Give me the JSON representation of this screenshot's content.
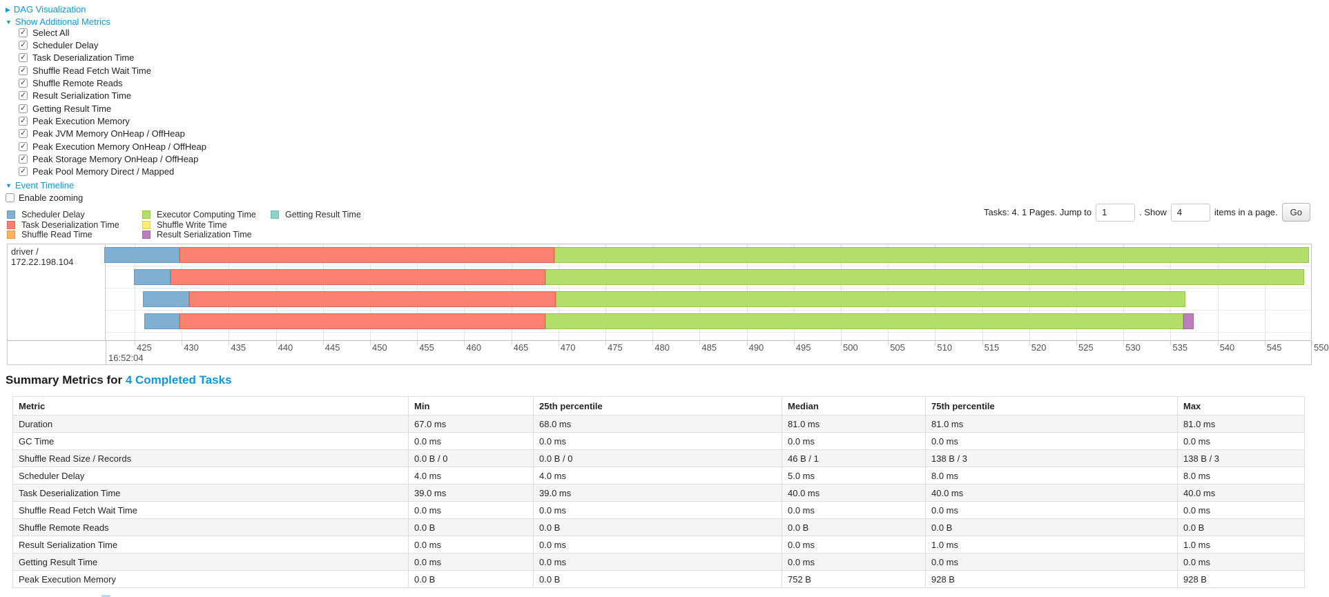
{
  "icons": {
    "collapsed_arrow": "▶",
    "expanded_arrow": "▼"
  },
  "colors": {
    "link": "#0d97d6",
    "scheduler_delay": {
      "fill": "#80B1D3",
      "border": "#659ABF"
    },
    "task_deserialization": {
      "fill": "#FB8072",
      "border": "#DF675A"
    },
    "shuffle_read": {
      "fill": "#FDB462",
      "border": "#E09A45"
    },
    "executor_computing": {
      "fill": "#B3DE69",
      "border": "#97C54A"
    },
    "shuffle_write": {
      "fill": "#FFED6F",
      "border": "#E3D051"
    },
    "result_serialization": {
      "fill": "#BC80BD",
      "border": "#A365A4"
    },
    "getting_result": {
      "fill": "#8DD3C7",
      "border": "#6FBCAE"
    }
  },
  "controls": {
    "dag_label": "DAG Visualization",
    "metrics_label": "Show Additional Metrics",
    "timeline_label": "Event Timeline",
    "enable_zooming_label": "Enable zooming",
    "enable_zooming_checked": false,
    "metric_checkboxes": [
      {
        "label": "Select All",
        "checked": true
      },
      {
        "label": "Scheduler Delay",
        "checked": true
      },
      {
        "label": "Task Deserialization Time",
        "checked": true
      },
      {
        "label": "Shuffle Read Fetch Wait Time",
        "checked": true
      },
      {
        "label": "Shuffle Remote Reads",
        "checked": true
      },
      {
        "label": "Result Serialization Time",
        "checked": true
      },
      {
        "label": "Getting Result Time",
        "checked": true
      },
      {
        "label": "Peak Execution Memory",
        "checked": true
      },
      {
        "label": "Peak JVM Memory OnHeap / OffHeap",
        "checked": true
      },
      {
        "label": "Peak Execution Memory OnHeap / OffHeap",
        "checked": true
      },
      {
        "label": "Peak Storage Memory OnHeap / OffHeap",
        "checked": true
      },
      {
        "label": "Peak Pool Memory Direct / Mapped",
        "checked": true
      }
    ]
  },
  "legend": {
    "items": [
      {
        "label": "Scheduler Delay",
        "kind": "scheduler_delay"
      },
      {
        "label": "Task Deserialization Time",
        "kind": "task_deserialization"
      },
      {
        "label": "Shuffle Read Time",
        "kind": "shuffle_read"
      },
      {
        "label": "Executor Computing Time",
        "kind": "executor_computing"
      },
      {
        "label": "Shuffle Write Time",
        "kind": "shuffle_write"
      },
      {
        "label": "Result Serialization Time",
        "kind": "result_serialization"
      },
      {
        "label": "Getting Result Time",
        "kind": "getting_result"
      }
    ]
  },
  "pagination": {
    "prefix": "Tasks: 4. 1 Pages. Jump to",
    "jump_value": "1",
    "mid": ". Show",
    "show_value": "4",
    "suffix": "items in a page.",
    "go_label": "Go"
  },
  "chart_data": {
    "type": "timeline-gantt",
    "group_label": "driver / 172.22.198.104",
    "x_axis": {
      "major_label": "16:52:04",
      "tick_step": 5,
      "ticks": [
        425,
        430,
        435,
        440,
        445,
        450,
        455,
        460,
        465,
        470,
        475,
        480,
        485,
        490,
        495,
        500,
        505,
        510,
        515,
        520,
        525,
        530,
        535,
        540,
        545,
        550
      ]
    },
    "tasks": [
      {
        "segments": [
          {
            "kind": "scheduler_delay",
            "start": 421.8,
            "end": 429.8
          },
          {
            "kind": "task_deserialization",
            "start": 429.8,
            "end": 469.6
          },
          {
            "kind": "executor_computing",
            "start": 469.6,
            "end": 549.7
          }
        ]
      },
      {
        "segments": [
          {
            "kind": "scheduler_delay",
            "start": 424.9,
            "end": 428.8
          },
          {
            "kind": "task_deserialization",
            "start": 428.8,
            "end": 468.6
          },
          {
            "kind": "executor_computing",
            "start": 468.6,
            "end": 549.2
          }
        ]
      },
      {
        "segments": [
          {
            "kind": "scheduler_delay",
            "start": 425.9,
            "end": 430.8
          },
          {
            "kind": "task_deserialization",
            "start": 430.8,
            "end": 469.7
          },
          {
            "kind": "executor_computing",
            "start": 469.7,
            "end": 536.6
          }
        ]
      },
      {
        "segments": [
          {
            "kind": "scheduler_delay",
            "start": 426.0,
            "end": 429.8
          },
          {
            "kind": "task_deserialization",
            "start": 429.8,
            "end": 468.6
          },
          {
            "kind": "executor_computing",
            "start": 468.6,
            "end": 536.4
          },
          {
            "kind": "result_serialization",
            "start": 536.4,
            "end": 537.5
          }
        ]
      }
    ]
  },
  "summary": {
    "title_prefix": "Summary Metrics for ",
    "title_link": "4 Completed Tasks",
    "table": {
      "headers": [
        "Metric",
        "Min",
        "25th percentile",
        "Median",
        "75th percentile",
        "Max"
      ],
      "rows": [
        [
          "Duration",
          "67.0 ms",
          "68.0 ms",
          "81.0 ms",
          "81.0 ms",
          "81.0 ms"
        ],
        [
          "GC Time",
          "0.0 ms",
          "0.0 ms",
          "0.0 ms",
          "0.0 ms",
          "0.0 ms"
        ],
        [
          "Shuffle Read Size / Records",
          "0.0 B / 0",
          "0.0 B / 0",
          "46 B / 1",
          "138 B / 3",
          "138 B / 3"
        ],
        [
          "Scheduler Delay",
          "4.0 ms",
          "4.0 ms",
          "5.0 ms",
          "8.0 ms",
          "8.0 ms"
        ],
        [
          "Task Deserialization Time",
          "39.0 ms",
          "39.0 ms",
          "40.0 ms",
          "40.0 ms",
          "40.0 ms"
        ],
        [
          "Shuffle Read Fetch Wait Time",
          "0.0 ms",
          "0.0 ms",
          "0.0 ms",
          "0.0 ms",
          "0.0 ms"
        ],
        [
          "Shuffle Remote Reads",
          "0.0 B",
          "0.0 B",
          "0.0 B",
          "0.0 B",
          "0.0 B"
        ],
        [
          "Result Serialization Time",
          "0.0 ms",
          "0.0 ms",
          "0.0 ms",
          "1.0 ms",
          "1.0 ms"
        ],
        [
          "Getting Result Time",
          "0.0 ms",
          "0.0 ms",
          "0.0 ms",
          "0.0 ms",
          "0.0 ms"
        ],
        [
          "Peak Execution Memory",
          "0.0 B",
          "0.0 B",
          "752 B",
          "928 B",
          "928 B"
        ]
      ]
    }
  }
}
